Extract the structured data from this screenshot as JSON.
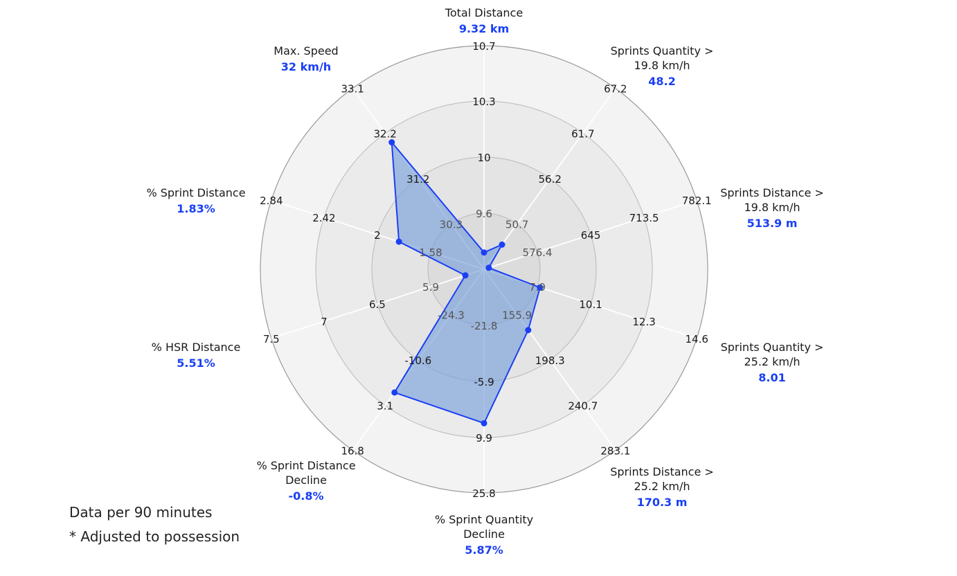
{
  "chart_data": {
    "type": "radar",
    "rings": 4,
    "axes": [
      {
        "label": [
          "Total Distance"
        ],
        "value_label": "9.32 km",
        "ticks": [
          "9.6",
          "10",
          "10.3",
          "10.7"
        ],
        "value": 9.32
      },
      {
        "label": [
          "Sprints Quantity >",
          "19.8 km/h"
        ],
        "value_label": "48.2",
        "ticks": [
          "50.7",
          "56.2",
          "61.7",
          "67.2"
        ],
        "value": 48.2
      },
      {
        "label": [
          "Sprints Distance >",
          "19.8 km/h"
        ],
        "value_label": "513.9 m",
        "ticks": [
          "576.4",
          "645",
          "713.5",
          "782.1"
        ],
        "value": 513.9
      },
      {
        "label": [
          "Sprints Quantity >",
          "25.2 km/h"
        ],
        "value_label": "8.01",
        "ticks": [
          "7.9",
          "10.1",
          "12.3",
          "14.6"
        ],
        "value": 8.01
      },
      {
        "label": [
          "Sprints Distance >",
          "25.2 km/h"
        ],
        "value_label": "170.3 m",
        "ticks": [
          "155.9",
          "198.3",
          "240.7",
          "283.1"
        ],
        "value": 170.3
      },
      {
        "label": [
          "% Sprint Quantity",
          "Decline"
        ],
        "value_label": "5.87%",
        "ticks": [
          "-21.8",
          "-5.9",
          "9.9",
          "25.8"
        ],
        "value": 5.87
      },
      {
        "label": [
          "% Sprint Distance",
          "Decline"
        ],
        "value_label": "-0.8%",
        "ticks": [
          "-24.3",
          "-10.6",
          "3.1",
          "16.8"
        ],
        "value": -0.8
      },
      {
        "label": [
          "% HSR Distance"
        ],
        "value_label": "5.51%",
        "ticks": [
          "5.9",
          "6.5",
          "7",
          "7.5"
        ],
        "value": 5.51
      },
      {
        "label": [
          "% Sprint Distance"
        ],
        "value_label": "1.83%",
        "ticks": [
          "1.58",
          "2",
          "2.42",
          "2.84"
        ],
        "value": 1.83
      },
      {
        "label": [
          "Max. Speed"
        ],
        "value_label": "32 km/h",
        "ticks": [
          "30.3",
          "31.2",
          "32.2",
          "33.1"
        ],
        "value": 32
      }
    ],
    "grid": true,
    "series_color": "#1a3ff5",
    "fill_color": "#7a9fd8"
  },
  "footnotes": {
    "line1": "Data per 90 minutes",
    "line2": "* Adjusted to possession"
  }
}
